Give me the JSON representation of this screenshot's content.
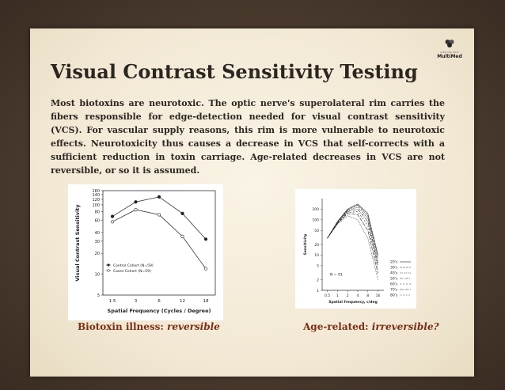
{
  "slide": {
    "title": "Visual Contrast Sensitivity Testing",
    "body": "Most biotoxins are neurotoxic. The optic nerve's superolateral rim carries the fibers responsible for edge-detection needed for visual contrast sensitivity (VCS). For vascular supply reasons, this rim is more vulnerable to neurotoxic effects. Neurotoxicity thus causes a decrease in VCS that self-corrects with a sufficient reduction in toxin carriage. Age-related decreases in VCS are not reversible, or so it is assumed."
  },
  "logo": {
    "tagline": "SURVIVING MOLD",
    "name": "MultiMed"
  },
  "captions": {
    "left_label": "Biotoxin illness:",
    "left_value": "reversible",
    "right_label": "Age-related:",
    "right_value": "irreversible?"
  },
  "chart_data": [
    {
      "type": "line",
      "title": "",
      "xlabel": "Spatial Frequency (Cycles / Degree)",
      "ylabel": "Visual Contrast Sensitivity",
      "x": [
        "1.5",
        "3",
        "6",
        "12",
        "18"
      ],
      "yticks": [
        5,
        10,
        20,
        30,
        40,
        60,
        80,
        100,
        120,
        140,
        160
      ],
      "ylim": [
        5,
        160
      ],
      "y_scale": "log",
      "legend_position": "lower-left",
      "series": [
        {
          "name": "Control Cohort (N=59)",
          "marker": "filled",
          "values": [
            68,
            110,
            130,
            75,
            32
          ]
        },
        {
          "name": "Cases Cohort (N=59)",
          "marker": "open",
          "values": [
            57,
            85,
            72,
            35,
            12
          ]
        }
      ]
    },
    {
      "type": "line",
      "title": "",
      "xlabel": "Spatial frequency, c/deg",
      "ylabel": "Sensitivity",
      "xticks": [
        "0.5",
        "1",
        "2",
        "4",
        "8",
        "16"
      ],
      "yticks": [
        1,
        2,
        5,
        10,
        20,
        50,
        100,
        200
      ],
      "y_scale": "log",
      "x_scale": "log",
      "annotation": "N = 91",
      "legend_position": "right",
      "series": [
        {
          "name": "20's",
          "values": [
            30,
            90,
            200,
            280,
            150,
            10
          ]
        },
        {
          "name": "30's",
          "values": [
            30,
            88,
            190,
            260,
            130,
            8
          ]
        },
        {
          "name": "40's",
          "values": [
            30,
            85,
            180,
            230,
            110,
            6
          ]
        },
        {
          "name": "50's",
          "values": [
            30,
            82,
            170,
            200,
            90,
            5
          ]
        },
        {
          "name": "60's",
          "values": [
            30,
            80,
            160,
            170,
            70,
            4
          ]
        },
        {
          "name": "70's",
          "values": [
            30,
            78,
            150,
            140,
            50,
            3
          ]
        },
        {
          "name": "80's",
          "values": [
            30,
            75,
            130,
            100,
            30,
            2
          ]
        }
      ]
    }
  ]
}
